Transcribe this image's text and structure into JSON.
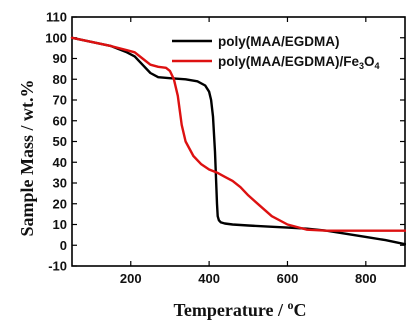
{
  "chart_data": {
    "type": "line",
    "xlabel_main": "Temperature / ",
    "xlabel_unit": "C",
    "xlabel_degree": "o",
    "ylabel": "Sample Mass / wt.%",
    "xlim": [
      50,
      900
    ],
    "ylim": [
      -10,
      110
    ],
    "xticks": [
      200,
      400,
      600,
      800
    ],
    "yticks": [
      -10,
      0,
      10,
      20,
      30,
      40,
      50,
      60,
      70,
      80,
      90,
      100,
      110
    ],
    "legend_position": "top-right",
    "series": [
      {
        "name_parts": {
          "main": "poly(MAA/EGDMA)"
        },
        "color": "#000000",
        "x": [
          50,
          100,
          150,
          190,
          210,
          230,
          250,
          270,
          300,
          340,
          370,
          390,
          400,
          405,
          410,
          415,
          418,
          420,
          422,
          425,
          430,
          440,
          460,
          500,
          550,
          600,
          650,
          700,
          750,
          800,
          850,
          900
        ],
        "y": [
          100,
          98,
          96,
          93,
          91,
          87,
          83,
          81,
          80.5,
          80,
          79,
          77,
          74,
          70,
          62,
          45,
          30,
          20,
          14,
          12,
          11,
          10.5,
          10,
          9.5,
          9,
          8.5,
          8,
          7,
          5.5,
          4,
          2.5,
          0.5
        ]
      },
      {
        "name_parts": {
          "main": "poly(MAA/EGDMA)/Fe",
          "sub1": "3",
          "mid": "O",
          "sub2": "4"
        },
        "color": "#dd1111",
        "x": [
          50,
          100,
          150,
          190,
          210,
          230,
          250,
          270,
          290,
          300,
          310,
          320,
          330,
          340,
          360,
          380,
          400,
          420,
          440,
          460,
          480,
          500,
          530,
          560,
          600,
          630,
          650,
          700,
          800,
          900
        ],
        "y": [
          100,
          98,
          96,
          94,
          93,
          90,
          87,
          86,
          85.5,
          84,
          80,
          72,
          58,
          50,
          43,
          39,
          36.5,
          35,
          33,
          31,
          28,
          24,
          19,
          14,
          10,
          8.5,
          7.5,
          7,
          7,
          7
        ]
      }
    ]
  }
}
